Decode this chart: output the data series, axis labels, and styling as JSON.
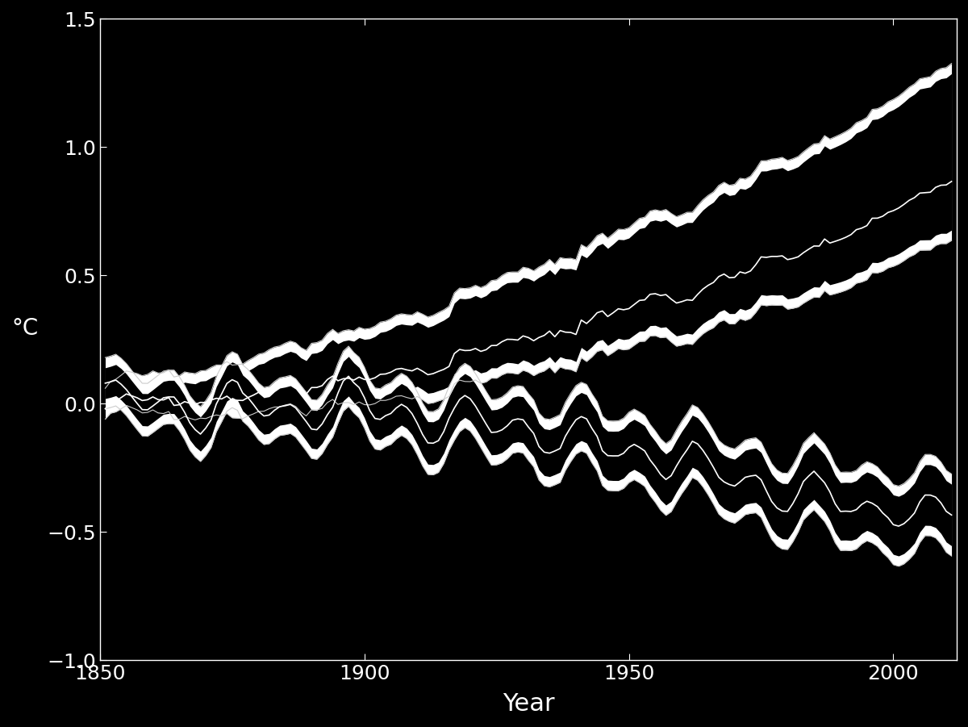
{
  "background_color": "#000000",
  "axes_color": "#ffffff",
  "text_color": "#ffffff",
  "xlim": [
    1850,
    2012
  ],
  "ylim": [
    -1.0,
    1.5
  ],
  "xticks": [
    1850,
    1900,
    1950,
    2000
  ],
  "yticks": [
    -1.0,
    -0.5,
    0.0,
    0.5,
    1.0,
    1.5
  ],
  "xlabel": "Year",
  "ylabel": "°C",
  "line_color": "#ffffff",
  "band_color": "#cccccc",
  "figsize": [
    12.0,
    9.01
  ],
  "dpi": 100
}
